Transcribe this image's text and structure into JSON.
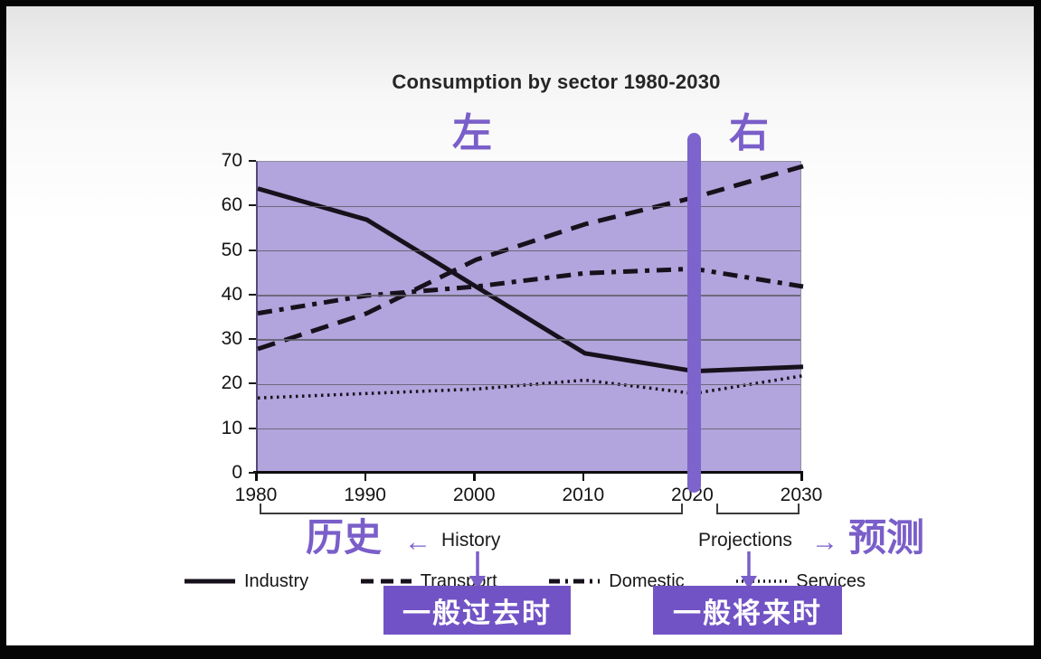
{
  "title": "Consumption by sector 1980-2030",
  "annotations": {
    "left_marker": "左",
    "right_marker": "右",
    "history_cn": "历史",
    "left_arrow": "←",
    "history_label": "History",
    "projections_label": "Projections",
    "right_arrow": "→",
    "forecast_cn": "预测",
    "past_tense_box": "一般过去时",
    "future_tense_box": "一般将来时"
  },
  "colors": {
    "accent_purple": "#7a5ec9",
    "box_purple": "#7253c5",
    "plot_background": "#b2a4dc",
    "divider_bar": "#7d63cc",
    "line_black": "#17111c"
  },
  "axes": {
    "y_ticks": [
      "70",
      "60",
      "50",
      "40",
      "30",
      "20",
      "10",
      "0"
    ],
    "x_ticks": [
      "1980",
      "1990",
      "2000",
      "2010",
      "2020",
      "2030"
    ]
  },
  "legend": [
    {
      "label": "Industry",
      "style": "solid"
    },
    {
      "label": "Transport",
      "style": "dashed"
    },
    {
      "label": "Domestic",
      "style": "dashdot"
    },
    {
      "label": "Services",
      "style": "dotted"
    }
  ],
  "chart_data": {
    "type": "line",
    "title": "Consumption by sector 1980-2030",
    "x": [
      1980,
      1990,
      2000,
      2010,
      2020,
      2030
    ],
    "series": [
      {
        "name": "Industry",
        "style": "solid",
        "values": [
          64,
          57,
          42,
          27,
          23,
          24
        ]
      },
      {
        "name": "Transport",
        "style": "dashed",
        "values": [
          28,
          36,
          48,
          56,
          62,
          69
        ]
      },
      {
        "name": "Domestic",
        "style": "dashdot",
        "values": [
          36,
          40,
          42,
          45,
          46,
          42
        ]
      },
      {
        "name": "Services",
        "style": "dotted",
        "values": [
          17,
          18,
          19,
          21,
          18,
          22
        ]
      }
    ],
    "ylim": [
      0,
      70
    ],
    "ytick_step": 10,
    "grid": true,
    "legend_position": "bottom",
    "divider_x": 2020,
    "history_range": [
      1980,
      2020
    ],
    "projection_range": [
      2020,
      2030
    ]
  }
}
